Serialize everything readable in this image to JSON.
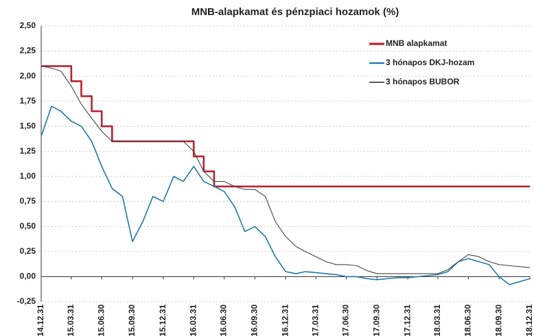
{
  "chart_data": {
    "type": "line",
    "title": "MNB-alapkamat és pénzpiaci hozamok (%)",
    "x": [
      "2014.12.31",
      "2015.01.31",
      "2015.02.28",
      "2015.03.31",
      "2015.04.30",
      "2015.05.31",
      "2015.06.30",
      "2015.07.31",
      "2015.08.31",
      "2015.09.30",
      "2015.10.31",
      "2015.11.30",
      "2015.12.31",
      "2016.01.31",
      "2016.02.29",
      "2016.03.31",
      "2016.04.30",
      "2016.05.31",
      "2016.06.30",
      "2016.07.31",
      "2016.08.31",
      "2016.09.30",
      "2016.10.31",
      "2016.11.30",
      "2016.12.31",
      "2017.01.31",
      "2017.02.28",
      "2017.03.31",
      "2017.04.30",
      "2017.05.31",
      "2017.06.30",
      "2017.07.31",
      "2017.08.31",
      "2017.09.30",
      "2017.10.31",
      "2017.11.30",
      "2017.12.31",
      "2018.01.31",
      "2018.02.28",
      "2018.03.31",
      "2018.04.30",
      "2018.05.31",
      "2018.06.30",
      "2018.07.31",
      "2018.08.31",
      "2018.09.30",
      "2018.10.31",
      "2018.11.30",
      "2018.12.31"
    ],
    "series": [
      {
        "name": "MNB alapkamat",
        "color": "#b5232f",
        "width": 2.6,
        "step": true,
        "values": [
          2.1,
          2.1,
          2.1,
          1.95,
          1.8,
          1.65,
          1.5,
          1.35,
          1.35,
          1.35,
          1.35,
          1.35,
          1.35,
          1.35,
          1.35,
          1.2,
          1.05,
          0.9,
          0.9,
          0.9,
          0.9,
          0.9,
          0.9,
          0.9,
          0.9,
          0.9,
          0.9,
          0.9,
          0.9,
          0.9,
          0.9,
          0.9,
          0.9,
          0.9,
          0.9,
          0.9,
          0.9,
          0.9,
          0.9,
          0.9,
          0.9,
          0.9,
          0.9,
          0.9,
          0.9,
          0.9,
          0.9,
          0.9,
          0.9
        ]
      },
      {
        "name": "3 hónapos DKJ-hozam",
        "color": "#1f77a8",
        "width": 1.6,
        "step": false,
        "values": [
          1.4,
          1.7,
          1.65,
          1.55,
          1.5,
          1.35,
          1.1,
          0.88,
          0.8,
          0.35,
          0.55,
          0.8,
          0.75,
          1.0,
          0.95,
          1.1,
          0.95,
          0.9,
          0.85,
          0.7,
          0.45,
          0.5,
          0.4,
          0.2,
          0.05,
          0.03,
          0.05,
          0.04,
          0.03,
          0.02,
          0.0,
          0.0,
          -0.02,
          -0.03,
          -0.02,
          -0.01,
          -0.01,
          0.0,
          0.01,
          0.02,
          0.05,
          0.15,
          0.18,
          0.15,
          0.12,
          0.0,
          -0.08,
          -0.05,
          -0.02
        ]
      },
      {
        "name": "3 hónapos BUBOR",
        "color": "#444444",
        "width": 1.1,
        "step": false,
        "values": [
          2.1,
          2.08,
          2.05,
          1.9,
          1.72,
          1.58,
          1.45,
          1.35,
          1.35,
          1.35,
          1.35,
          1.35,
          1.35,
          1.35,
          1.35,
          1.25,
          1.05,
          0.95,
          0.95,
          0.9,
          0.87,
          0.87,
          0.8,
          0.55,
          0.4,
          0.3,
          0.25,
          0.2,
          0.15,
          0.12,
          0.12,
          0.11,
          0.06,
          0.03,
          0.03,
          0.03,
          0.03,
          0.03,
          0.03,
          0.03,
          0.07,
          0.15,
          0.22,
          0.2,
          0.15,
          0.12,
          0.11,
          0.1,
          0.09
        ]
      }
    ],
    "xlim": [
      "2014.12.31",
      "2018.12.31"
    ],
    "xticks": [
      "2014.12.31",
      "2015.03.31",
      "2015.06.30",
      "2015.09.30",
      "2015.12.31",
      "2016.03.31",
      "2016.06.30",
      "2016.09.30",
      "2016.12.31",
      "2017.03.31",
      "2017.06.30",
      "2017.09.30",
      "2017.12.31",
      "2018.03.31",
      "2018.06.30",
      "2018.09.30",
      "2018.12.31"
    ],
    "ylim": [
      -0.25,
      2.5
    ],
    "yticks": [
      {
        "value": -0.25,
        "label": "-0,25"
      },
      {
        "value": 0,
        "label": "0,00"
      },
      {
        "value": 0.25,
        "label": "0,25"
      },
      {
        "value": 0.5,
        "label": "0,50"
      },
      {
        "value": 0.75,
        "label": "0,75"
      },
      {
        "value": 1,
        "label": "1,00"
      },
      {
        "value": 1.25,
        "label": "1,25"
      },
      {
        "value": 1.5,
        "label": "1,50"
      },
      {
        "value": 1.75,
        "label": "1,75"
      },
      {
        "value": 2,
        "label": "2,00"
      },
      {
        "value": 2.25,
        "label": "2,25"
      },
      {
        "value": 2.5,
        "label": "2,50"
      }
    ],
    "grid": true,
    "legend": "upper right"
  }
}
